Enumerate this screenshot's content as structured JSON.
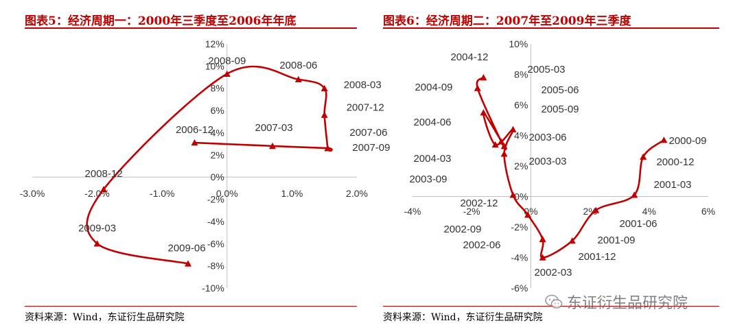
{
  "colors": {
    "accent": "#c00000",
    "text": "#333333",
    "axis": "#bfbfbf"
  },
  "chart_data": [
    {
      "type": "line",
      "title": "图表5：经济周期一：2000年三季度至2006年年底",
      "source": "资料来源：Wind，东证衍生品研究院",
      "xlabel": "",
      "ylabel": "",
      "xlim": [
        -3.0,
        2.0
      ],
      "ylim": [
        -10,
        12
      ],
      "x_ticks": [
        -3.0,
        -2.0,
        -1.0,
        0.0,
        1.0,
        2.0
      ],
      "x_tick_labels": [
        "-3.0%",
        "-2.0%",
        "-1.0%",
        "0.0%",
        "1.0%",
        "2.0%"
      ],
      "y_ticks": [
        12,
        10,
        8,
        6,
        4,
        2,
        0,
        -2,
        -4,
        -6,
        -8,
        -10
      ],
      "y_tick_labels": [
        "12%",
        "10%",
        "8%",
        "6%",
        "4%",
        "2%",
        "0%",
        "-2%",
        "-4%",
        "-6%",
        "-8%",
        "-10%"
      ],
      "grid": false,
      "series": [
        {
          "name": "经济周期一",
          "points": [
            {
              "label": "2006-12",
              "x": -0.5,
              "y": 3.1
            },
            {
              "label": "2007-03",
              "x": 0.7,
              "y": 2.8
            },
            {
              "label": "2007-06",
              "x": 1.55,
              "y": 2.6
            },
            {
              "label": "2007-09",
              "x": 1.55,
              "y": 2.6
            },
            {
              "label": "2007-12",
              "x": 1.5,
              "y": 5.6
            },
            {
              "label": "2008-03",
              "x": 1.5,
              "y": 8.0
            },
            {
              "label": "2008-06",
              "x": 1.1,
              "y": 8.8
            },
            {
              "label": "2008-09",
              "x": 0.0,
              "y": 9.3
            },
            {
              "label": "2008-12",
              "x": -1.9,
              "y": -1.1
            },
            {
              "label": "2009-03",
              "x": -2.0,
              "y": -6.0
            },
            {
              "label": "2009-06",
              "x": -0.6,
              "y": -7.8
            }
          ]
        }
      ],
      "annotations": [
        "2008-09",
        "2008-06",
        "2008-03",
        "2007-12",
        "2006-12",
        "2007-03",
        "2007-06",
        "2007-09",
        "2008-12",
        "2009-03",
        "2009-06"
      ]
    },
    {
      "type": "line",
      "title": "图表6：经济周期二：2007年至2009年三季度",
      "source": "资料来源：Wind，东证衍生品研究院",
      "xlabel": "",
      "ylabel": "",
      "xlim": [
        -4,
        6
      ],
      "ylim": [
        -6,
        10
      ],
      "x_ticks": [
        -4,
        -2,
        0,
        2,
        4,
        6
      ],
      "x_tick_labels": [
        "-4%",
        "-2%",
        "0%",
        "2%",
        "4%",
        "6%"
      ],
      "y_ticks": [
        10,
        8,
        6,
        4,
        2,
        0,
        -2,
        -4,
        -6
      ],
      "y_tick_labels": [
        "10%",
        "8%",
        "6%",
        "4%",
        "2%",
        "0%",
        "-2%",
        "-4%",
        "-6%"
      ],
      "grid": false,
      "series": [
        {
          "name": "经济周期二",
          "points": [
            {
              "label": "2000-09",
              "x": 4.5,
              "y": 3.7
            },
            {
              "label": "2000-12",
              "x": 3.8,
              "y": 2.6
            },
            {
              "label": "2001-03",
              "x": 3.5,
              "y": 0.1
            },
            {
              "label": "2001-06",
              "x": 2.2,
              "y": -0.9
            },
            {
              "label": "2001-09",
              "x": 1.4,
              "y": -2.9
            },
            {
              "label": "2001-12",
              "x": 0.4,
              "y": -4.0
            },
            {
              "label": "2002-03",
              "x": 0.4,
              "y": -2.8
            },
            {
              "label": "2002-06",
              "x": -0.1,
              "y": -1.2
            },
            {
              "label": "2002-09",
              "x": -0.6,
              "y": 0.1
            },
            {
              "label": "2002-12",
              "x": -0.9,
              "y": 2.8
            },
            {
              "label": "2003-03",
              "x": -0.6,
              "y": 4.4
            },
            {
              "label": "2003-06",
              "x": -1.2,
              "y": 3.4
            },
            {
              "label": "2003-09",
              "x": -1.6,
              "y": 5.5
            },
            {
              "label": "2004-03",
              "x": -0.9,
              "y": 3.3
            },
            {
              "label": "2004-06",
              "x": -1.0,
              "y": 3.6
            },
            {
              "label": "2004-09",
              "x": -1.8,
              "y": 7.1
            },
            {
              "label": "2004-12",
              "x": -1.6,
              "y": 7.8
            }
          ]
        }
      ],
      "annotations": [
        "2004-12",
        "2005-03",
        "2004-09",
        "2005-06",
        "2005-09",
        "2004-06",
        "2003-06",
        "2004-03",
        "2003-03",
        "2003-09",
        "2002-12",
        "2002-09",
        "2002-06",
        "2002-03",
        "2000-09",
        "2000-12",
        "2001-03",
        "2001-06",
        "2001-09",
        "2001-12"
      ]
    }
  ],
  "watermark": {
    "text": "东证衍生品研究院",
    "icon": "wechat-icon"
  }
}
